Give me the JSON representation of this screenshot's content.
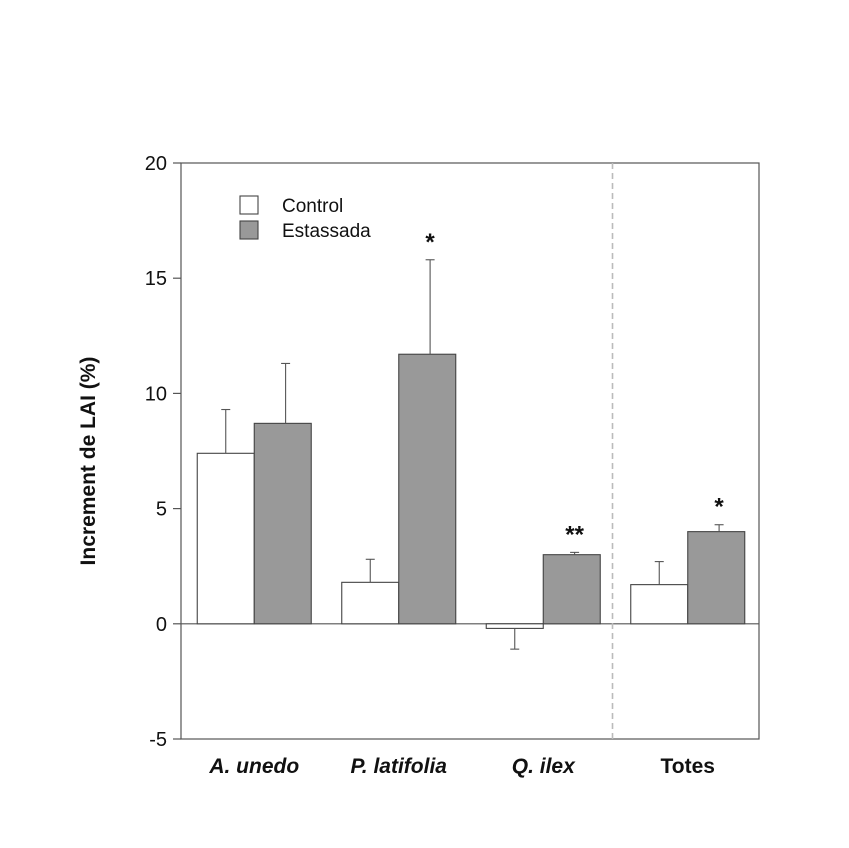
{
  "chart_data": {
    "type": "bar",
    "title": "",
    "xlabel": "",
    "ylabel": "Increment de LAI (%)",
    "ylim": [
      -5,
      20
    ],
    "yticks": [
      20,
      15,
      10,
      5,
      0,
      -5
    ],
    "categories": [
      "A. unedo",
      "P. latifolia",
      "Q. ilex",
      "Totes"
    ],
    "categories_italic": [
      true,
      true,
      true,
      false
    ],
    "series": [
      {
        "name": "Control",
        "color": "#ffffff",
        "values": [
          7.4,
          1.8,
          -0.2,
          1.7
        ],
        "errors": [
          1.9,
          1.0,
          0.9,
          1.0
        ]
      },
      {
        "name": "Estassada",
        "color": "#999999",
        "values": [
          8.7,
          11.7,
          3.0,
          4.0
        ],
        "errors": [
          2.6,
          4.1,
          0.1,
          0.3
        ]
      }
    ],
    "significance": [
      {
        "category": "P. latifolia",
        "series": "Estassada",
        "label": "*"
      },
      {
        "category": "Q. ilex",
        "series": "Estassada",
        "label": "**"
      },
      {
        "category": "Totes",
        "series": "Estassada",
        "label": "*"
      }
    ],
    "separator_before": "Totes",
    "legend_position": "top-left",
    "grid": false
  }
}
